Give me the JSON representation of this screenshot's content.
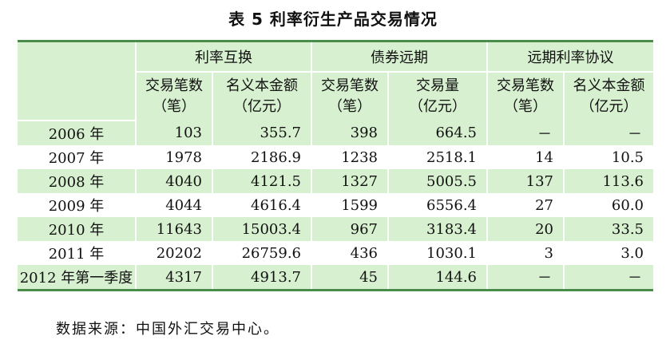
{
  "title": "表 5 利率衍生产品交易情况",
  "groups": [
    "利率互换",
    "债券远期",
    "远期利率协议"
  ],
  "subheaders": [
    [
      "交易笔数",
      "（笔）"
    ],
    [
      "名义本金额",
      "（亿元）"
    ],
    [
      "交易笔数",
      "（笔）"
    ],
    [
      "交易量",
      "（亿元）"
    ],
    [
      "交易笔数",
      "（笔）"
    ],
    [
      "名义本金额",
      "（亿元）"
    ]
  ],
  "rows": [
    [
      "2006 年",
      "103",
      "355.7",
      "398",
      "664.5",
      "－",
      "－"
    ],
    [
      "2007 年",
      "1978",
      "2186.9",
      "1238",
      "2518.1",
      "14",
      "10.5"
    ],
    [
      "2008 年",
      "4040",
      "4121.5",
      "1327",
      "5005.5",
      "137",
      "113.6"
    ],
    [
      "2009 年",
      "4044",
      "4616.4",
      "1599",
      "6556.4",
      "27",
      "60.0"
    ],
    [
      "2010 年",
      "11643",
      "15003.4",
      "967",
      "3183.4",
      "20",
      "33.5"
    ],
    [
      "2011 年",
      "20202",
      "26759.6",
      "436",
      "1030.1",
      "3",
      "3.0"
    ],
    [
      "2012 年第一季度",
      "4317",
      "4913.7",
      "45",
      "144.6",
      "－",
      "－"
    ]
  ],
  "source": "数据来源：中国外汇交易中心。"
}
